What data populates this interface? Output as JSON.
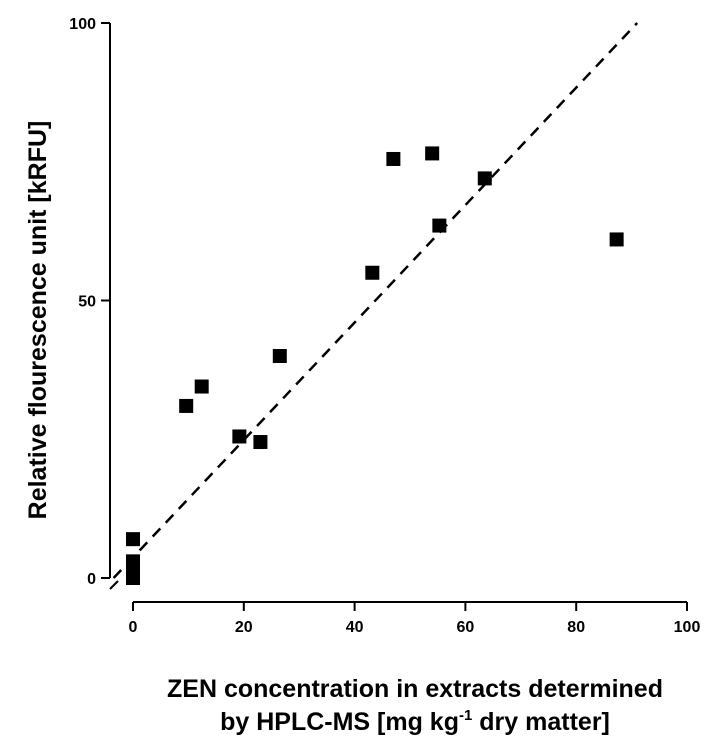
{
  "chart_data": {
    "type": "scatter",
    "title": "",
    "xlabel_line1": "ZEN concentration in extracts determined",
    "xlabel_line2_pre": "by HPLC-MS [mg kg",
    "xlabel_line2_sup": "-1",
    "xlabel_line2_post": " dry matter]",
    "ylabel": "Relative flourescence unit [kRFU]",
    "xlim": [
      0,
      100
    ],
    "ylim": [
      0,
      100
    ],
    "x_ticks": [
      0,
      20,
      40,
      60,
      80,
      100
    ],
    "y_ticks": [
      0,
      50,
      100
    ],
    "x_tick_labels": [
      "0",
      "20",
      "40",
      "60",
      "80",
      "100"
    ],
    "y_tick_labels": [
      "0",
      "50",
      "100"
    ],
    "grid": false,
    "point_color": "#000000",
    "points": [
      {
        "x": 0,
        "y": 7
      },
      {
        "x": 0,
        "y": 3
      },
      {
        "x": 0,
        "y": 1.5
      },
      {
        "x": 0,
        "y": 0
      },
      {
        "x": 9.6,
        "y": 31
      },
      {
        "x": 12.4,
        "y": 34.5
      },
      {
        "x": 19.2,
        "y": 25.5
      },
      {
        "x": 23,
        "y": 24.5
      },
      {
        "x": 26.5,
        "y": 40
      },
      {
        "x": 43.2,
        "y": 55
      },
      {
        "x": 47,
        "y": 75.5
      },
      {
        "x": 54,
        "y": 76.5
      },
      {
        "x": 55.3,
        "y": 63.5
      },
      {
        "x": 63.5,
        "y": 72
      },
      {
        "x": 87.3,
        "y": 61
      }
    ],
    "fit_line": {
      "x": [
        -3.5,
        91
      ],
      "y": [
        0,
        100
      ],
      "style": "dashed"
    }
  }
}
